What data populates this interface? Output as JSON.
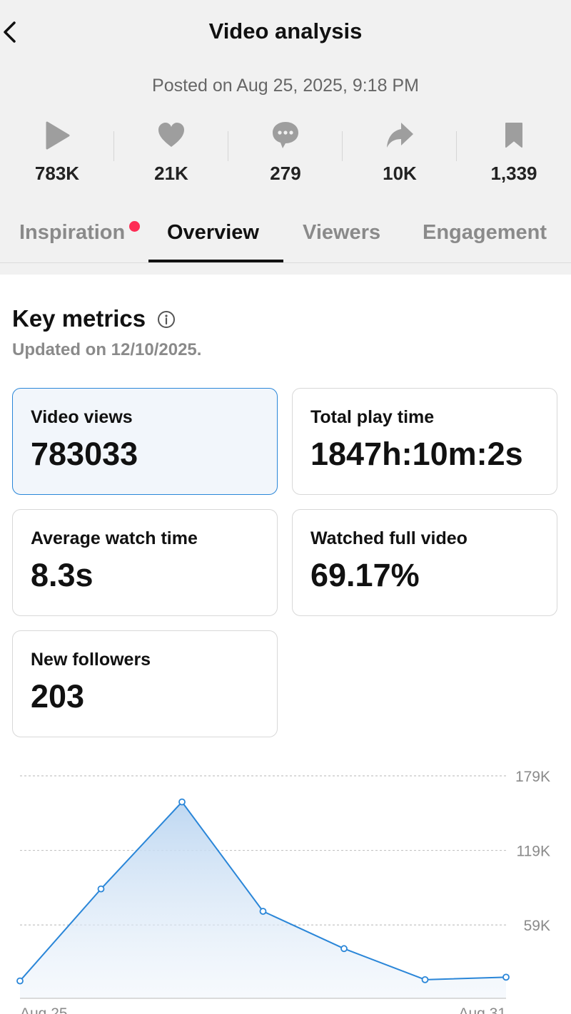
{
  "header": {
    "title": "Video analysis",
    "posted": "Posted on Aug 25, 2025, 9:18 PM"
  },
  "stats": [
    {
      "icon": "play-icon",
      "value": "783K"
    },
    {
      "icon": "heart-icon",
      "value": "21K"
    },
    {
      "icon": "comment-icon",
      "value": "279"
    },
    {
      "icon": "share-icon",
      "value": "10K"
    },
    {
      "icon": "bookmark-icon",
      "value": "1,339"
    }
  ],
  "tabs": [
    {
      "label": "Inspiration",
      "has_dot": true
    },
    {
      "label": "Overview",
      "active": true
    },
    {
      "label": "Viewers"
    },
    {
      "label": "Engagement"
    }
  ],
  "metrics": {
    "heading": "Key metrics",
    "updated": "Updated on 12/10/2025.",
    "cards": [
      {
        "label": "Video views",
        "value": "783033",
        "selected": true
      },
      {
        "label": "Total play time",
        "value": "1847h:10m:2s"
      },
      {
        "label": "Average watch time",
        "value": "8.3s"
      },
      {
        "label": "Watched full video",
        "value": "69.17%"
      },
      {
        "label": "New followers",
        "value": "203"
      }
    ]
  },
  "colors": {
    "accent": "#2a86d8",
    "notification_dot": "#fe2c55",
    "header_bg": "#f1f1f1"
  },
  "chart_data": {
    "type": "area",
    "x": [
      "Aug 25",
      "Aug 26",
      "Aug 27",
      "Aug 28",
      "Aug 29",
      "Aug 30",
      "Aug 31"
    ],
    "x_tick_labels": [
      "Aug 25",
      "Aug 31"
    ],
    "values": [
      14000,
      88000,
      158000,
      70000,
      40000,
      15000,
      17000
    ],
    "y_ticks": [
      59000,
      119000,
      179000
    ],
    "y_tick_labels": [
      "59K",
      "119K",
      "179K"
    ],
    "ylim": [
      0,
      179000
    ],
    "grid": true,
    "legend": "none",
    "title": "",
    "xlabel": "",
    "ylabel": ""
  }
}
